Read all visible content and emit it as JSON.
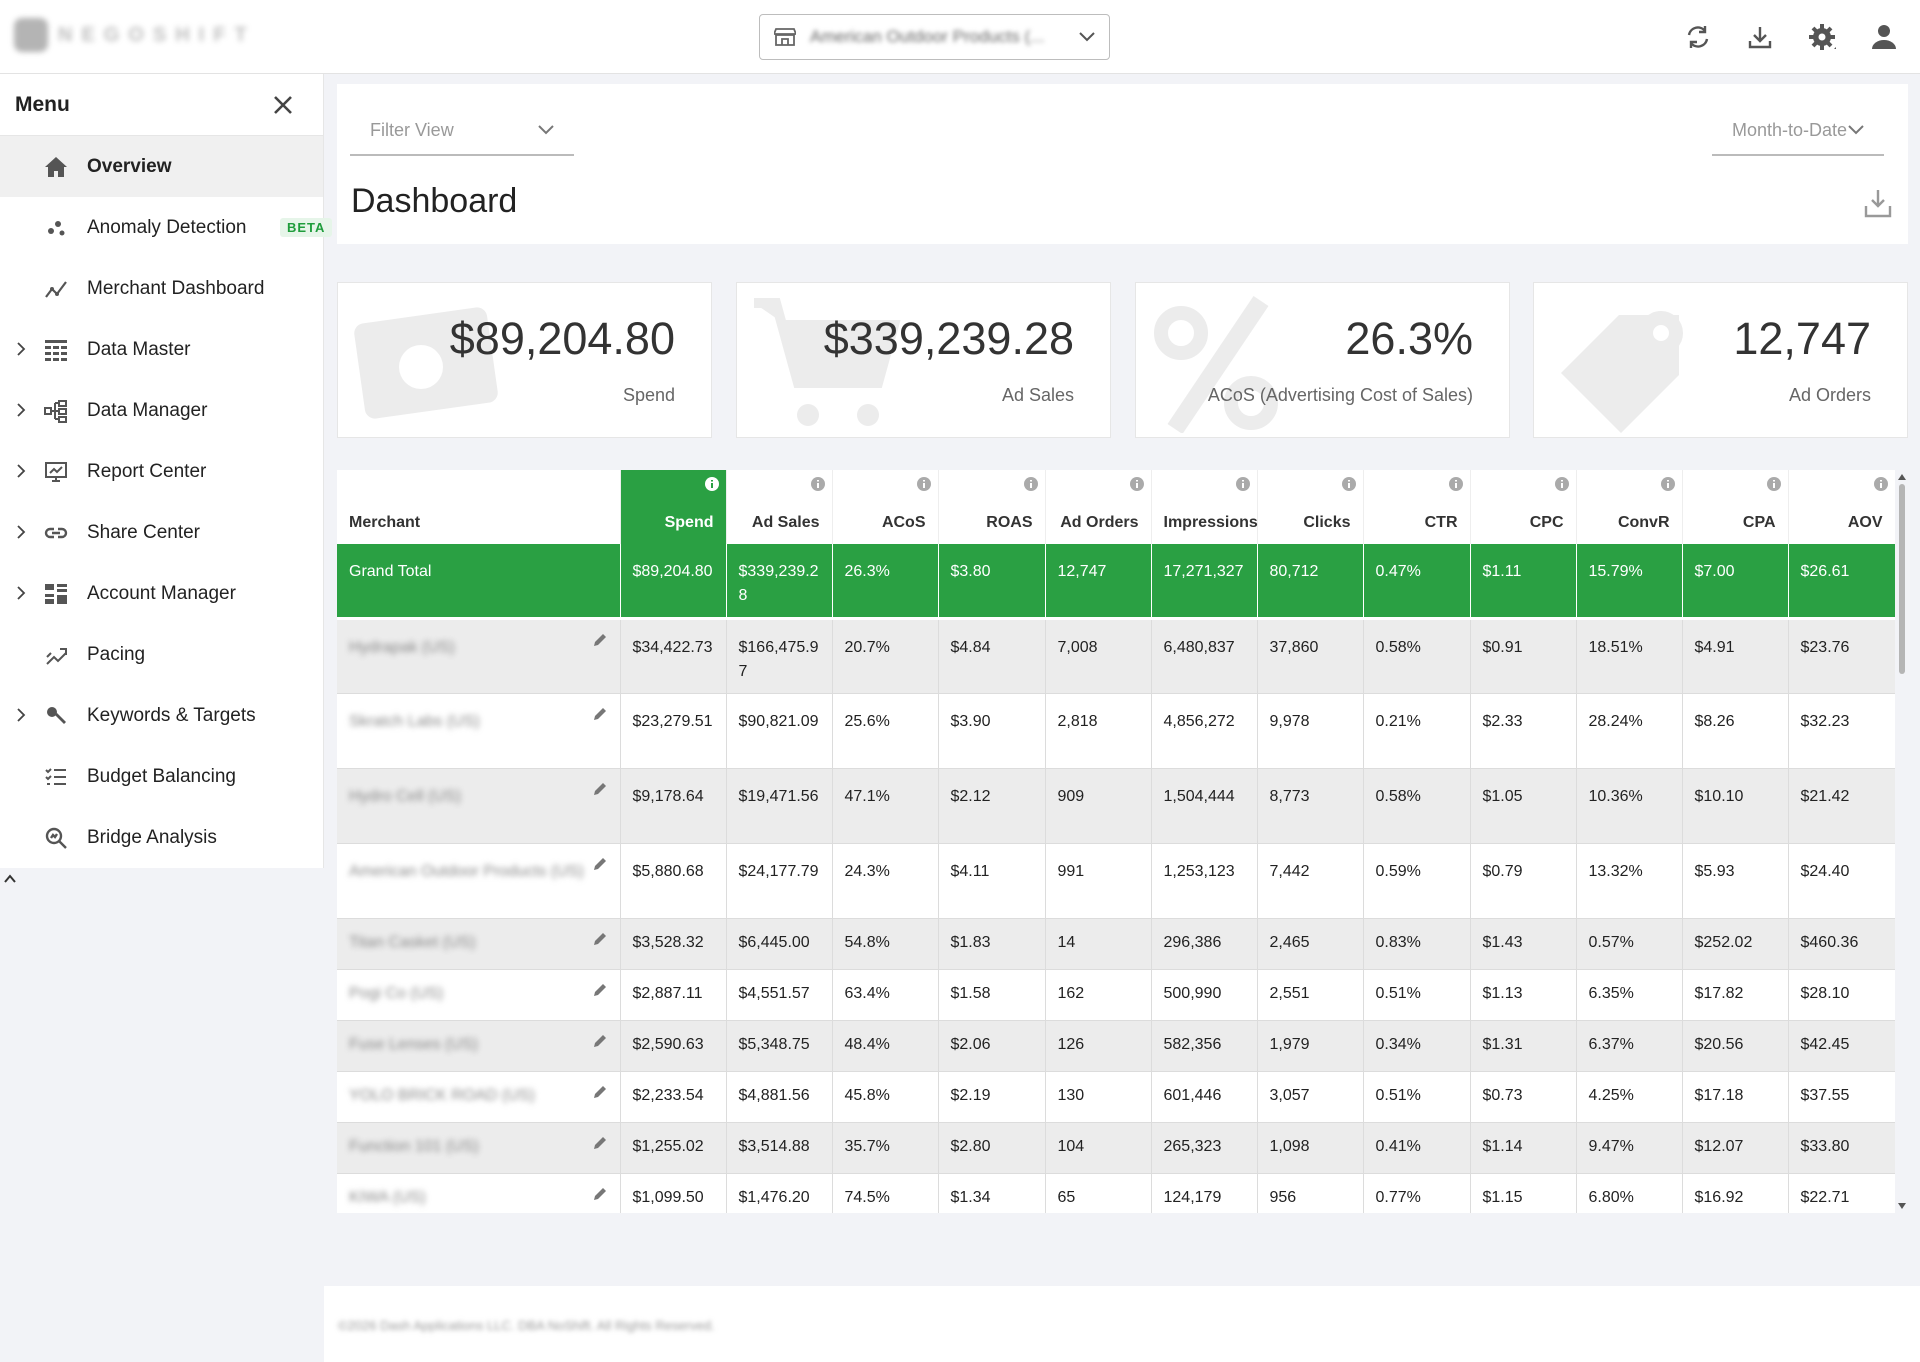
{
  "header": {
    "logo_text": "NEGOSHIFT",
    "account_selector": "American Outdoor Products (...",
    "icons": [
      "refresh-icon",
      "download-icon",
      "gear-icon",
      "user-icon"
    ]
  },
  "menu": {
    "title": "Menu",
    "items": [
      {
        "label": "Overview",
        "icon": "home-icon",
        "expandable": false,
        "active": true
      },
      {
        "label": "Anomaly Detection",
        "icon": "anomaly-icon",
        "expandable": false,
        "badge": "BETA"
      },
      {
        "label": "Merchant Dashboard",
        "icon": "trend-icon",
        "expandable": false
      },
      {
        "label": "Data Master",
        "icon": "grid-icon",
        "expandable": true
      },
      {
        "label": "Data Manager",
        "icon": "tree-icon",
        "expandable": true
      },
      {
        "label": "Report Center",
        "icon": "monitor-icon",
        "expandable": true
      },
      {
        "label": "Share Center",
        "icon": "link-icon",
        "expandable": true
      },
      {
        "label": "Account Manager",
        "icon": "tiles-icon",
        "expandable": true
      },
      {
        "label": "Pacing",
        "icon": "pacing-icon",
        "expandable": false
      },
      {
        "label": "Keywords & Targets",
        "icon": "target-icon",
        "expandable": true
      },
      {
        "label": "Budget Balancing",
        "icon": "list-icon",
        "expandable": false
      },
      {
        "label": "Bridge Analysis",
        "icon": "magnify-icon",
        "expandable": false
      }
    ]
  },
  "filters": {
    "filter_view_placeholder": "Filter View",
    "date_range": "Month-to-Date"
  },
  "dashboard": {
    "title": "Dashboard"
  },
  "kpis": [
    {
      "value": "$89,204.80",
      "label": "Spend",
      "icon": "money-icon"
    },
    {
      "value": "$339,239.28",
      "label": "Ad Sales",
      "icon": "cart-icon"
    },
    {
      "value": "26.3%",
      "label": "ACoS (Advertising Cost of Sales)",
      "icon": "percent-icon"
    },
    {
      "value": "12,747",
      "label": "Ad Orders",
      "icon": "tag-icon"
    }
  ],
  "table": {
    "columns": [
      "Merchant",
      "Spend",
      "Ad Sales",
      "ACoS",
      "ROAS",
      "Ad Orders",
      "Impressions",
      "Clicks",
      "CTR",
      "CPC",
      "ConvR",
      "CPA",
      "AOV"
    ],
    "total": [
      "Grand Total",
      "$89,204.80",
      "$339,239.28",
      "26.3%",
      "$3.80",
      "12,747",
      "17,271,327",
      "80,712",
      "0.47%",
      "$1.11",
      "15.79%",
      "$7.00",
      "$26.61"
    ],
    "rows": [
      [
        "Hydrapak (US)",
        "$34,422.73",
        "$166,475.97",
        "20.7%",
        "$4.84",
        "7,008",
        "6,480,837",
        "37,860",
        "0.58%",
        "$0.91",
        "18.51%",
        "$4.91",
        "$23.76"
      ],
      [
        "Skratch Labs (US)",
        "$23,279.51",
        "$90,821.09",
        "25.6%",
        "$3.90",
        "2,818",
        "4,856,272",
        "9,978",
        "0.21%",
        "$2.33",
        "28.24%",
        "$8.26",
        "$32.23"
      ],
      [
        "Hydro Cell (US)",
        "$9,178.64",
        "$19,471.56",
        "47.1%",
        "$2.12",
        "909",
        "1,504,444",
        "8,773",
        "0.58%",
        "$1.05",
        "10.36%",
        "$10.10",
        "$21.42"
      ],
      [
        "American Outdoor Products (US)",
        "$5,880.68",
        "$24,177.79",
        "24.3%",
        "$4.11",
        "991",
        "1,253,123",
        "7,442",
        "0.59%",
        "$0.79",
        "13.32%",
        "$5.93",
        "$24.40"
      ],
      [
        "Titan Casket (US)",
        "$3,528.32",
        "$6,445.00",
        "54.8%",
        "$1.83",
        "14",
        "296,386",
        "2,465",
        "0.83%",
        "$1.43",
        "0.57%",
        "$252.02",
        "$460.36"
      ],
      [
        "Pogi Co (US)",
        "$2,887.11",
        "$4,551.57",
        "63.4%",
        "$1.58",
        "162",
        "500,990",
        "2,551",
        "0.51%",
        "$1.13",
        "6.35%",
        "$17.82",
        "$28.10"
      ],
      [
        "Fuse Lenses (US)",
        "$2,590.63",
        "$5,348.75",
        "48.4%",
        "$2.06",
        "126",
        "582,356",
        "1,979",
        "0.34%",
        "$1.31",
        "6.37%",
        "$20.56",
        "$42.45"
      ],
      [
        "YOLO BRICK ROAD (US)",
        "$2,233.54",
        "$4,881.56",
        "45.8%",
        "$2.19",
        "130",
        "601,446",
        "3,057",
        "0.51%",
        "$0.73",
        "4.25%",
        "$17.18",
        "$37.55"
      ],
      [
        "Function 101 (US)",
        "$1,255.02",
        "$3,514.88",
        "35.7%",
        "$2.80",
        "104",
        "265,323",
        "1,098",
        "0.41%",
        "$1.14",
        "9.47%",
        "$12.07",
        "$33.80"
      ],
      [
        "KIWA (US)",
        "$1,099.50",
        "$1,476.20",
        "74.5%",
        "$1.34",
        "65",
        "124,179",
        "956",
        "0.77%",
        "$1.15",
        "6.80%",
        "$16.92",
        "$22.71"
      ]
    ]
  },
  "footer": {
    "copyright": "©2026 Dash Applications LLC. DBA NoShift. All Rights Reserved."
  },
  "colors": {
    "accent": "#2aa043"
  }
}
